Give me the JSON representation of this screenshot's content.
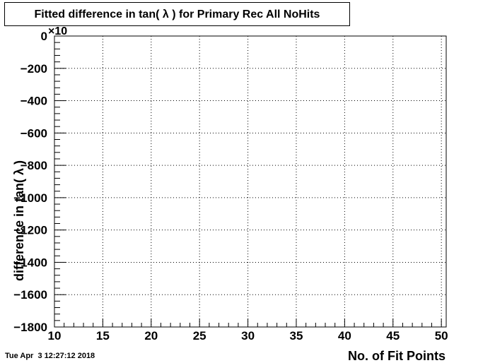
{
  "page": {
    "title": "Fitted difference in tan( λ ) for Primary Rec All NoHits",
    "timestamp": "Tue Apr  3 12:27:12 2018"
  },
  "chart_data": {
    "type": "line",
    "title": "Fitted difference in tan( λ ) for Primary Rec All NoHits",
    "xlabel": "No. of Fit Points",
    "ylabel": "difference in tan( λ )",
    "y_exponent_label": "×10",
    "xlim": [
      10,
      50.5
    ],
    "ylim": [
      -1800,
      0
    ],
    "x_ticks": [
      10,
      15,
      20,
      25,
      30,
      35,
      40,
      45,
      50
    ],
    "x_tick_labels": [
      "10",
      "15",
      "20",
      "25",
      "30",
      "35",
      "40",
      "45",
      "50"
    ],
    "y_ticks": [
      0,
      -200,
      -400,
      -600,
      -800,
      -1000,
      -1200,
      -1400,
      -1600,
      -1800
    ],
    "y_tick_labels": [
      "0",
      "−200",
      "−400",
      "−600",
      "−800",
      "−1000",
      "−1200",
      "−1400",
      "−1600",
      "−1800"
    ],
    "grid": true,
    "series": [
      {
        "color": "#cc0000",
        "x": [
          10,
          50.5
        ],
        "y": [
          0,
          0
        ]
      }
    ]
  }
}
